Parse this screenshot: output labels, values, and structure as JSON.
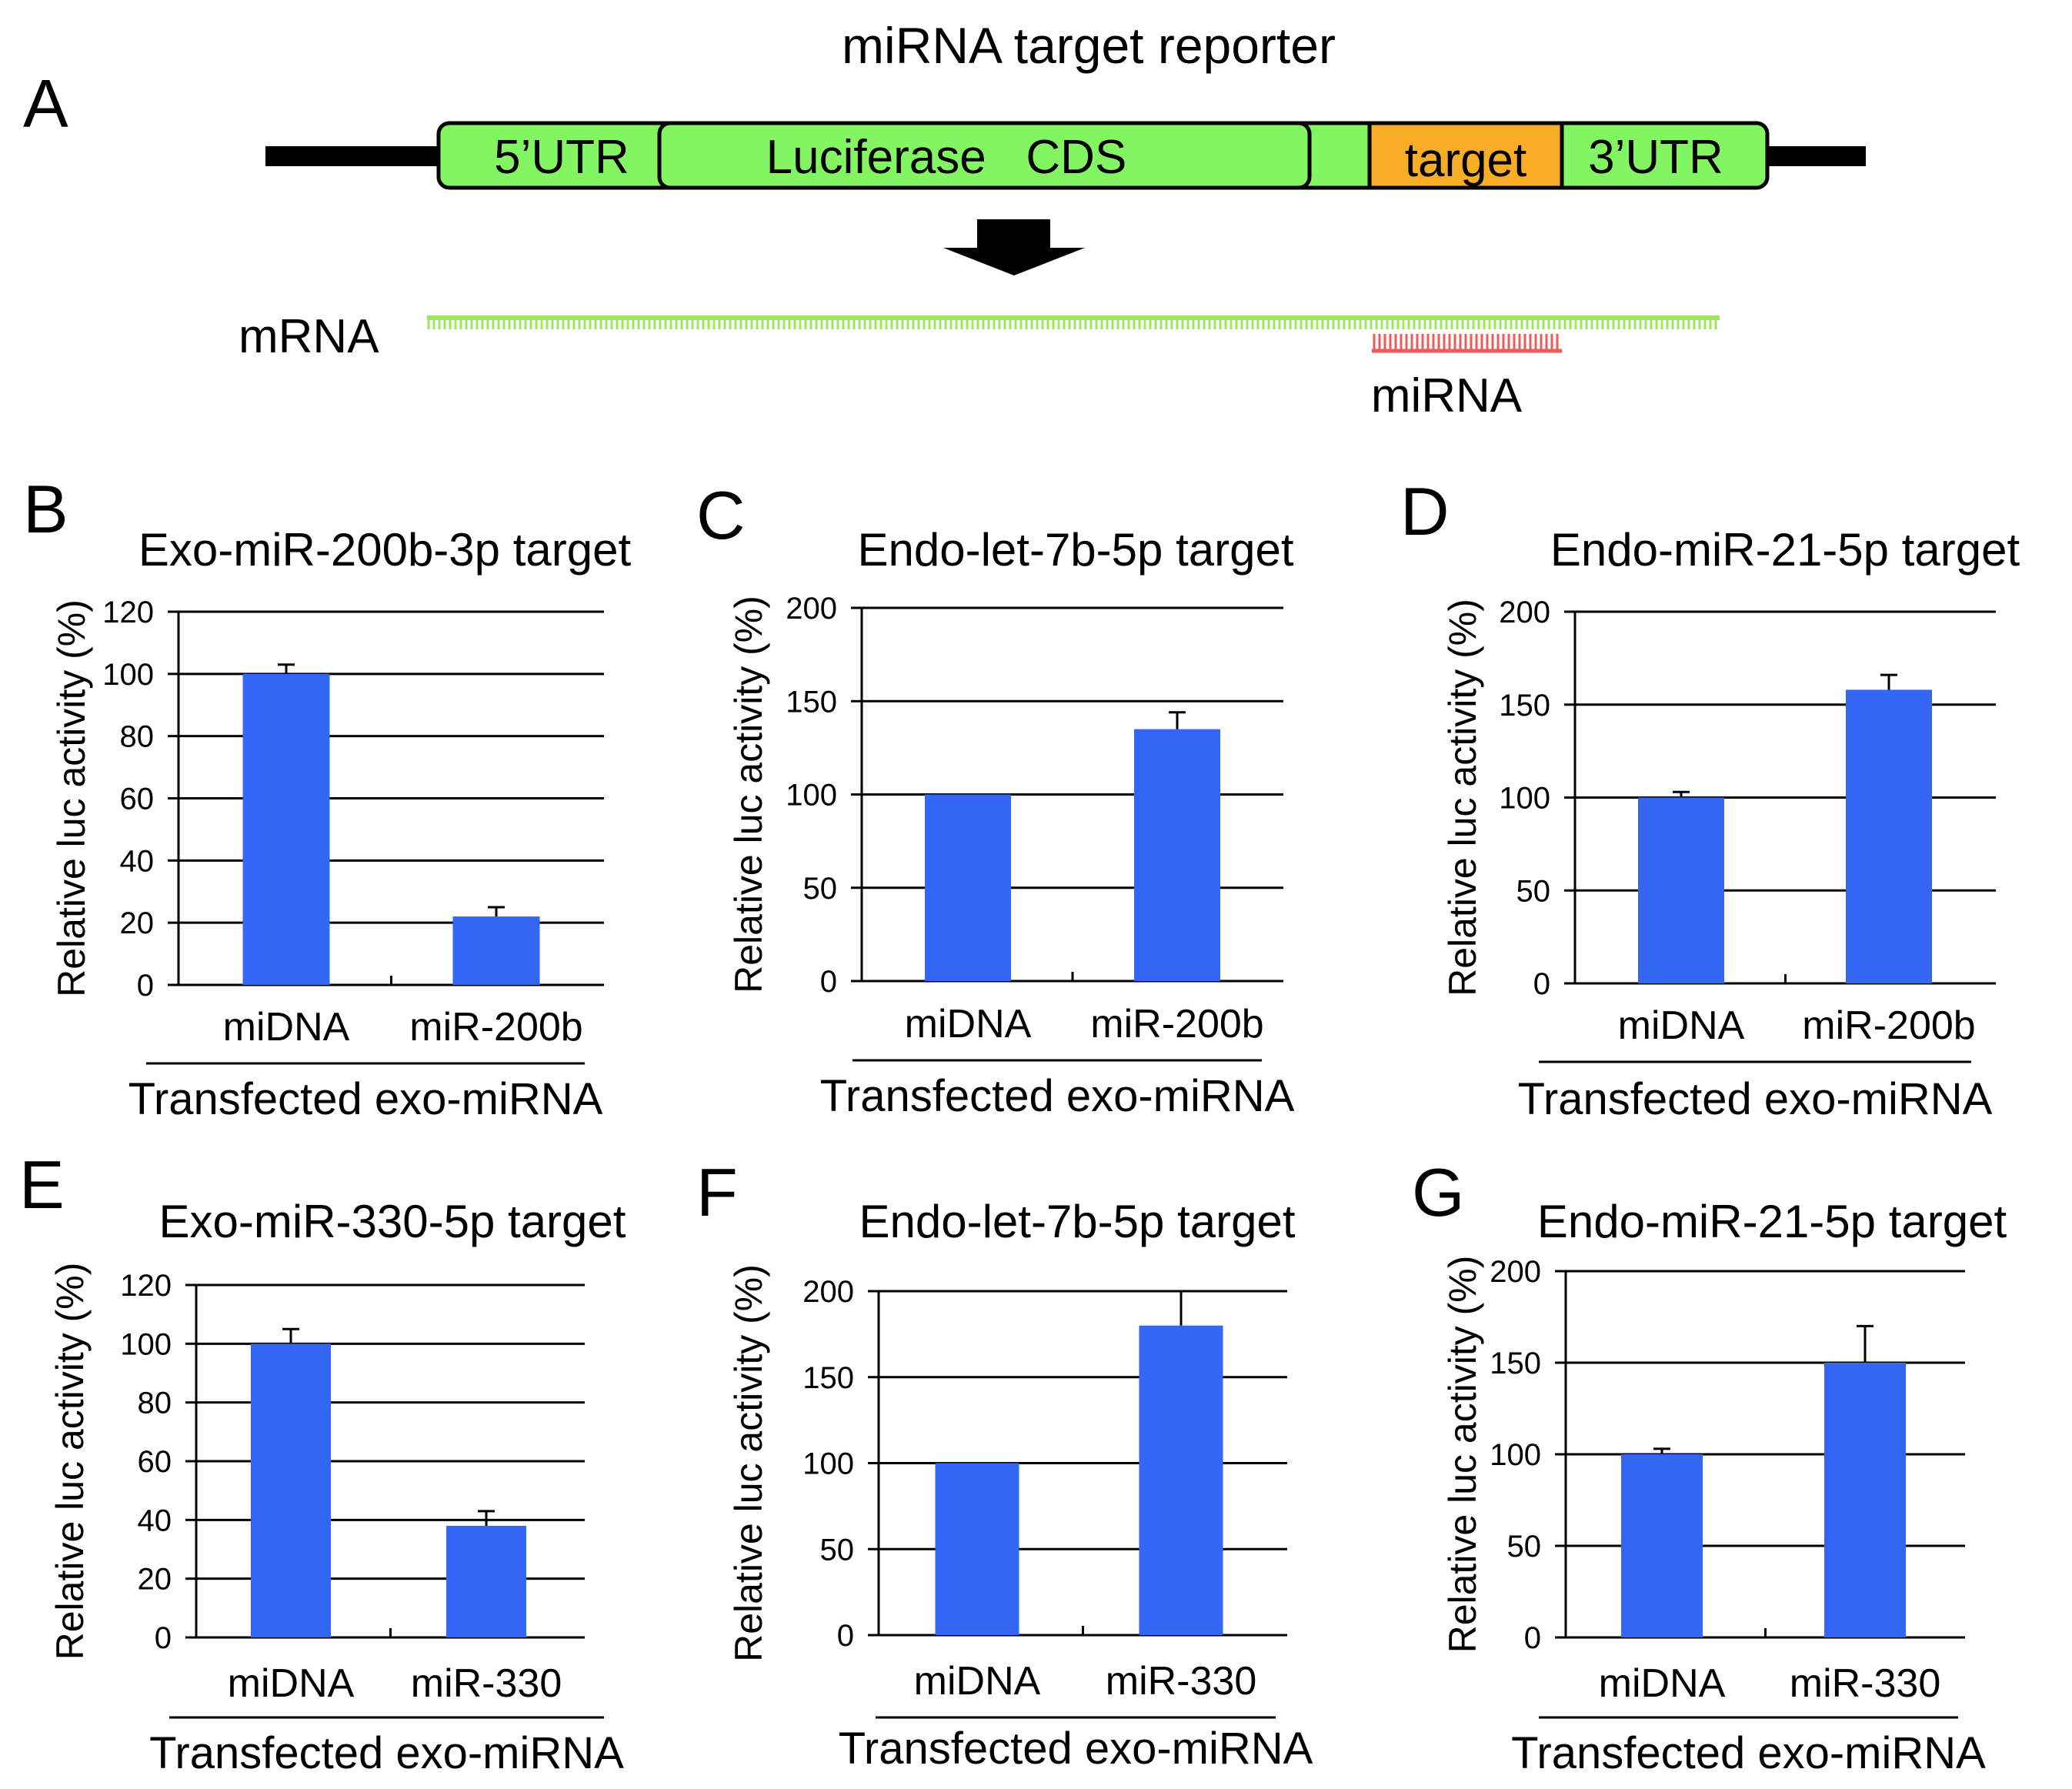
{
  "colors": {
    "bar": "#3366f2",
    "box_green": "#84f562",
    "target_orange": "#f7ad26",
    "mrna_green": "#9ee65a",
    "mirna_red": "#ef5a5a",
    "line": "#000000"
  },
  "diagram": {
    "panel_label": "A",
    "title": "miRNA target reporter",
    "segments": [
      "5’UTR",
      "Luciferase   CDS",
      "target",
      "3’UTR"
    ],
    "mrna_label": "mRNA",
    "mirna_label": "miRNA"
  },
  "chart_data": [
    {
      "panel": "B",
      "type": "bar",
      "title": "Exo-miR-200b-3p target",
      "ylabel": "Relative luc activity (%)",
      "xlabel": "Transfected exo-miRNA",
      "categories": [
        "miDNA",
        "miR-200b"
      ],
      "values": [
        100,
        22
      ],
      "errors": [
        3,
        3
      ],
      "ylim": [
        0,
        120
      ],
      "yticks": [
        0,
        20,
        40,
        60,
        80,
        100,
        120
      ],
      "ytick_labels": [
        "0",
        "20",
        "40",
        "60",
        "80",
        "100",
        "120"
      ]
    },
    {
      "panel": "C",
      "type": "bar",
      "title": "Endo-let-7b-5p target",
      "ylabel": "Relative luc activity (%)",
      "xlabel": "Transfected exo-miRNA",
      "categories": [
        "miDNA",
        "miR-200b"
      ],
      "values": [
        100,
        135
      ],
      "errors": [
        0,
        9
      ],
      "ylim": [
        0,
        200
      ],
      "yticks": [
        0,
        50,
        100,
        150,
        200
      ],
      "ytick_labels": [
        "0",
        "50",
        "100",
        "150",
        "200"
      ]
    },
    {
      "panel": "D",
      "type": "bar",
      "title": "Endo-miR-21-5p target",
      "ylabel": "Relative luc activity (%)",
      "xlabel": "Transfected exo-miRNA",
      "categories": [
        "miDNA",
        "miR-200b"
      ],
      "values": [
        100,
        158
      ],
      "errors": [
        3,
        8
      ],
      "ylim": [
        0,
        200
      ],
      "yticks": [
        0,
        50,
        100,
        150,
        200
      ],
      "ytick_labels": [
        "0",
        "50",
        "100",
        "150",
        "200"
      ]
    },
    {
      "panel": "E",
      "type": "bar",
      "title": "Exo-miR-330-5p target",
      "ylabel": "Relative luc activity (%)",
      "xlabel": "Transfected exo-miRNA",
      "categories": [
        "miDNA",
        "miR-330"
      ],
      "values": [
        100,
        38
      ],
      "errors": [
        5,
        5
      ],
      "ylim": [
        0,
        120
      ],
      "yticks": [
        0,
        20,
        40,
        60,
        80,
        100,
        120
      ],
      "ytick_labels": [
        "0",
        "20",
        "40",
        "60",
        "80",
        "100",
        "120"
      ]
    },
    {
      "panel": "F",
      "type": "bar",
      "title": "Endo-let-7b-5p target",
      "ylabel": "Relative luc activity (%)",
      "xlabel": "Transfected exo-miRNA",
      "categories": [
        "miDNA",
        "miR-330"
      ],
      "values": [
        100,
        180
      ],
      "errors": [
        0,
        20
      ],
      "ylim": [
        0,
        200
      ],
      "yticks": [
        0,
        50,
        100,
        150,
        200
      ],
      "ytick_labels": [
        "0",
        "50",
        "100",
        "150",
        "200"
      ]
    },
    {
      "panel": "G",
      "type": "bar",
      "title": "Endo-miR-21-5p target",
      "ylabel": "Relative luc activity (%)",
      "xlabel": "Transfected exo-miRNA",
      "categories": [
        "miDNA",
        "miR-330"
      ],
      "values": [
        100,
        150
      ],
      "errors": [
        3,
        20
      ],
      "ylim": [
        0,
        200
      ],
      "yticks": [
        0,
        50,
        100,
        150,
        200
      ],
      "ytick_labels": [
        "0",
        "50",
        "100",
        "150",
        "200"
      ]
    }
  ]
}
